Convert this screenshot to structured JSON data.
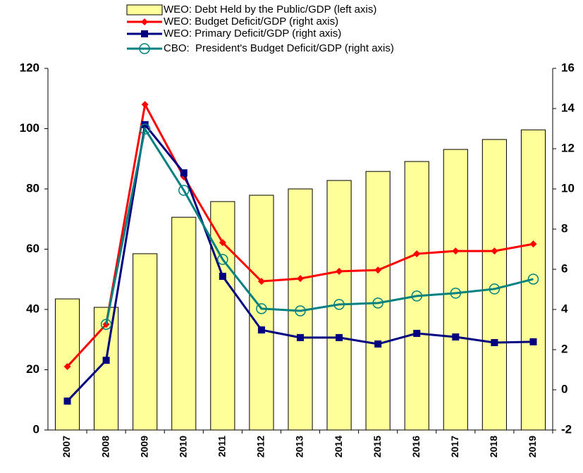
{
  "chart_data": {
    "type": "bar-line",
    "categories": [
      "2007",
      "2008",
      "2009",
      "2010",
      "2011",
      "2012",
      "2013",
      "2014",
      "2015",
      "2016",
      "2017",
      "2018",
      "2019"
    ],
    "series": [
      {
        "name": "WEO: Debt Held by the Public/GDP (left axis)",
        "type": "bar",
        "color": "#ffff99",
        "axis": "y",
        "values": [
          43.5,
          40.7,
          58.5,
          70.6,
          75.8,
          77.9,
          80,
          82.8,
          85.8,
          89.1,
          93.1,
          96.4,
          99.6
        ]
      },
      {
        "name": "WEO: Budget Deficit/GDP (right axis)",
        "type": "line",
        "marker": "diamond",
        "color": "#ff0000",
        "axis": "y2",
        "values": [
          1.16,
          3.26,
          14.2,
          10.6,
          7.33,
          5.4,
          5.54,
          5.9,
          5.96,
          6.77,
          6.91,
          6.91,
          7.26
        ]
      },
      {
        "name": "WEO: Primary Deficit/GDP (right axis)",
        "type": "line",
        "marker": "square",
        "color": "#000080",
        "axis": "y2",
        "values": [
          -0.56,
          1.47,
          13.2,
          10.8,
          5.65,
          2.98,
          2.6,
          2.6,
          2.28,
          2.81,
          2.63,
          2.35,
          2.39
        ]
      },
      {
        "name": "CBO:  President's Budget Deficit/GDP (right axis)",
        "type": "line",
        "marker": "circle",
        "color": "#008080",
        "axis": "y2",
        "values": [
          null,
          3.26,
          12.98,
          9.93,
          6.49,
          4.04,
          3.93,
          4.25,
          4.32,
          4.67,
          4.81,
          5.02,
          5.51
        ]
      }
    ],
    "ylim": [
      0,
      120
    ],
    "yticks": [
      0,
      20,
      40,
      60,
      80,
      100,
      120
    ],
    "y2lim": [
      -2,
      16
    ],
    "y2ticks": [
      -2,
      0,
      2,
      4,
      6,
      8,
      10,
      12,
      14,
      16
    ],
    "grid": false,
    "legend": "top"
  }
}
